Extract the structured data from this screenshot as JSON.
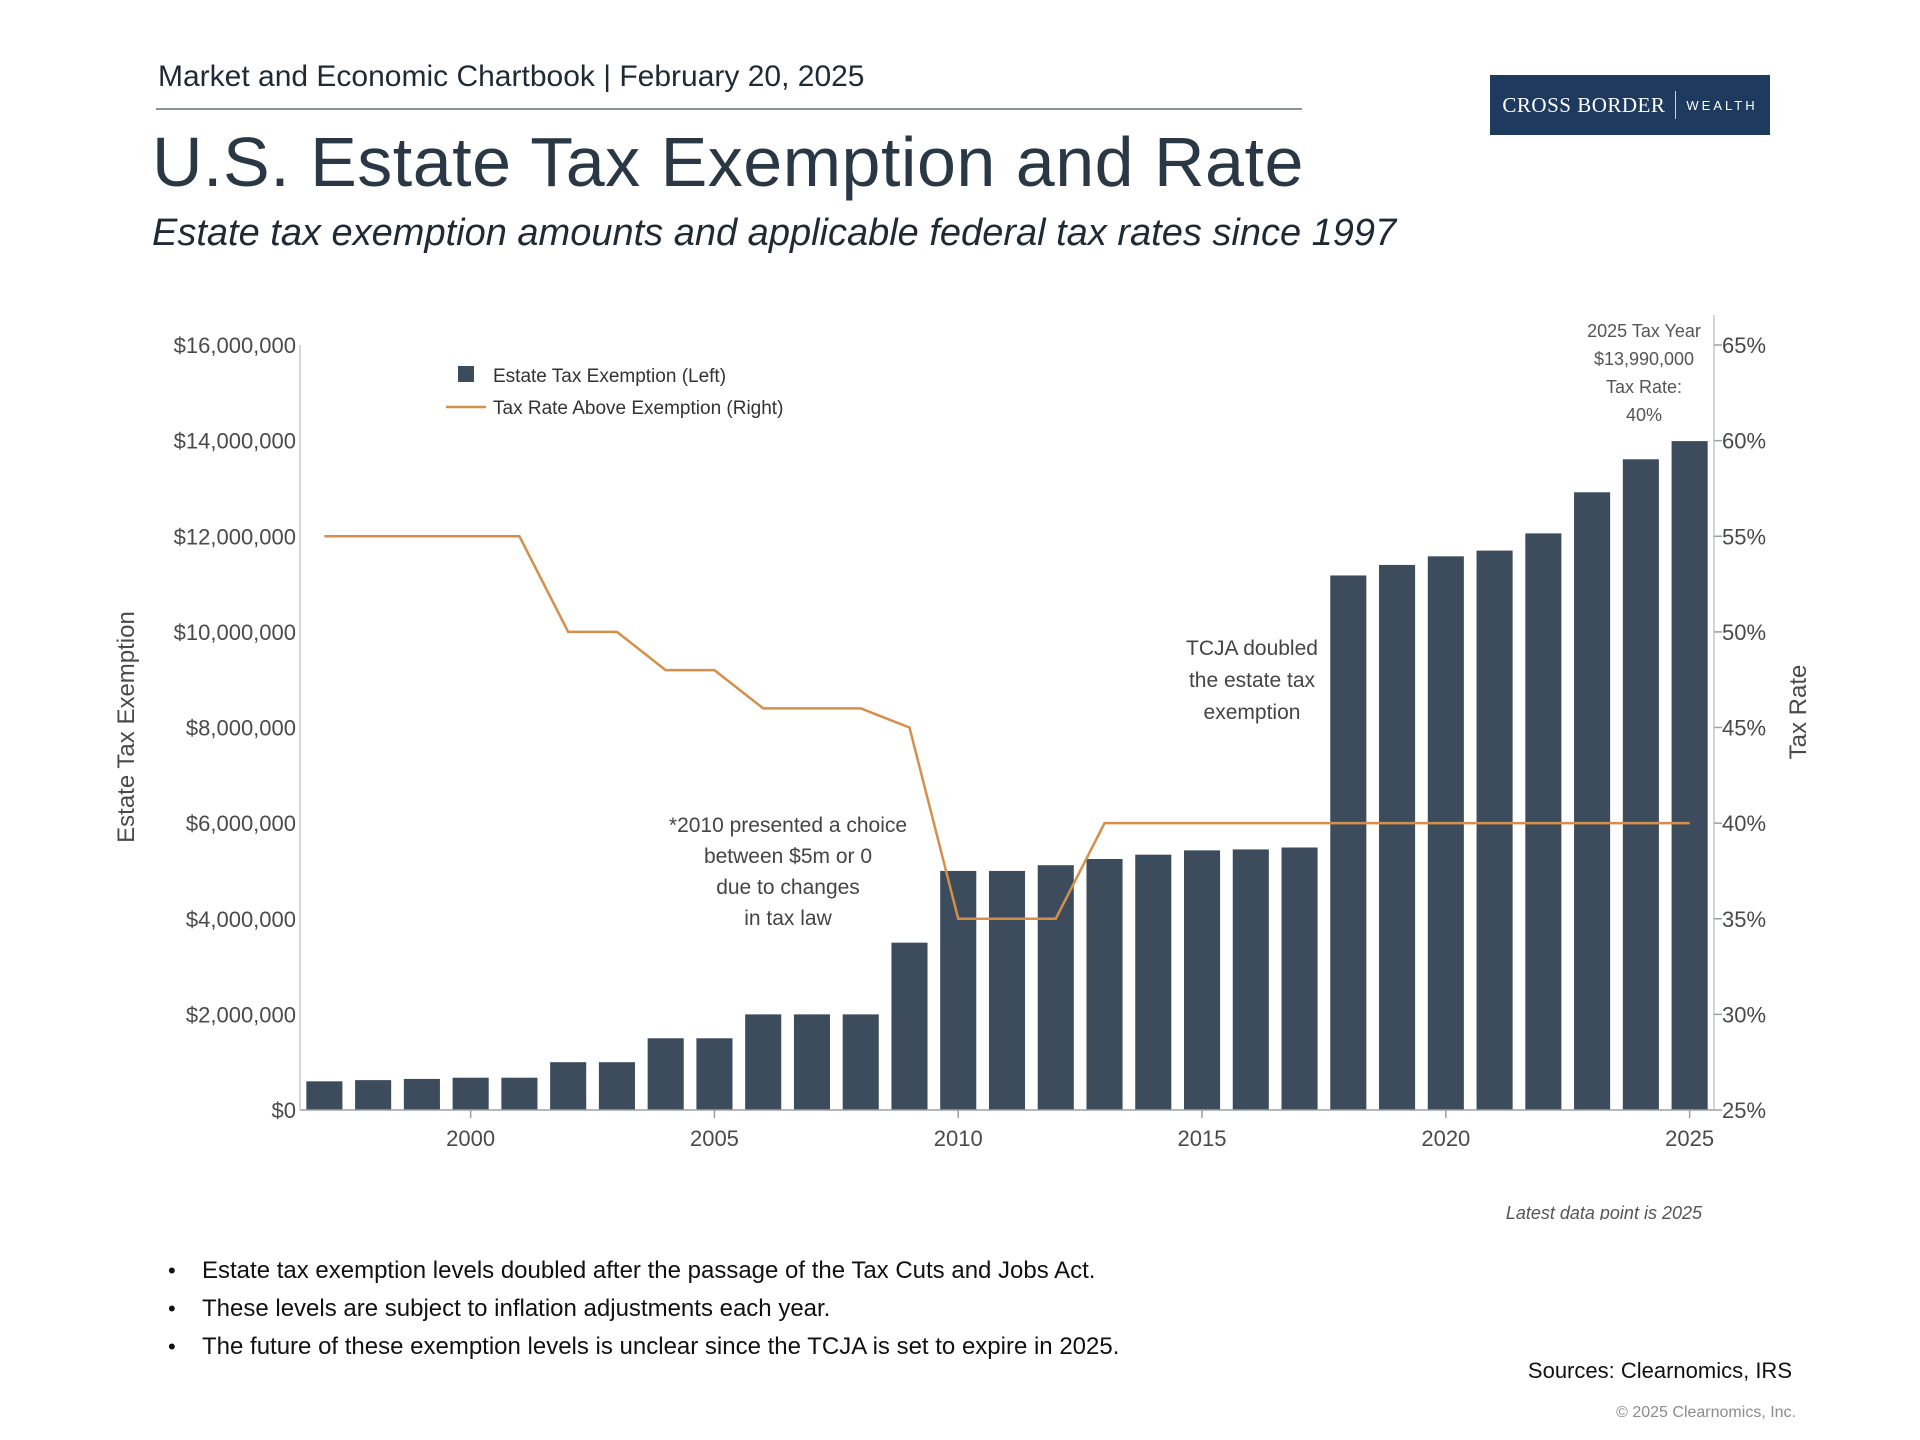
{
  "header": {
    "chartbook_line": "Market and Economic Chartbook | February 20, 2025",
    "logo_left": "CROSS BORDER",
    "logo_right": "WEALTH"
  },
  "title": "U.S. Estate Tax Exemption and Rate",
  "subtitle": "Estate tax exemption amounts and applicable federal tax rates since 1997",
  "colors": {
    "bar": "#3d4c5c",
    "line": "#d4904a",
    "text": "#4a4a4a",
    "logo_bg": "#1f3a5f"
  },
  "chart_data": {
    "type": "bar",
    "ylabel": "Estate Tax Exemption",
    "y2label": "Tax Rate",
    "ylim": [
      0,
      16000000
    ],
    "y2lim": [
      25,
      65
    ],
    "yticks": [
      "$0",
      "$2,000,000",
      "$4,000,000",
      "$6,000,000",
      "$8,000,000",
      "$10,000,000",
      "$12,000,000",
      "$14,000,000",
      "$16,000,000"
    ],
    "y2ticks": [
      "25%",
      "30%",
      "35%",
      "40%",
      "45%",
      "50%",
      "55%",
      "60%",
      "65%"
    ],
    "xticks": [
      "2000",
      "2005",
      "2010",
      "2015",
      "2020",
      "2025"
    ],
    "legend_placement": "top-left",
    "series": [
      {
        "name": "Estate Tax Exemption (Left)",
        "type": "bar",
        "years": [
          1997,
          1998,
          1999,
          2000,
          2001,
          2002,
          2003,
          2004,
          2005,
          2006,
          2007,
          2008,
          2009,
          2010,
          2011,
          2012,
          2013,
          2014,
          2015,
          2016,
          2017,
          2018,
          2019,
          2020,
          2021,
          2022,
          2023,
          2024,
          2025
        ],
        "values": [
          600000,
          625000,
          650000,
          675000,
          675000,
          1000000,
          1000000,
          1500000,
          1500000,
          2000000,
          2000000,
          2000000,
          3500000,
          5000000,
          5000000,
          5120000,
          5250000,
          5340000,
          5430000,
          5450000,
          5490000,
          11180000,
          11400000,
          11580000,
          11700000,
          12060000,
          12920000,
          13610000,
          13990000
        ]
      },
      {
        "name": "Tax Rate Above Exemption (Right)",
        "type": "line",
        "points": [
          [
            1997,
            55
          ],
          [
            2001,
            55
          ],
          [
            2002,
            50
          ],
          [
            2003,
            50
          ],
          [
            2004,
            48
          ],
          [
            2005,
            48
          ],
          [
            2006,
            46
          ],
          [
            2008,
            46
          ],
          [
            2009,
            45
          ],
          [
            2010,
            35
          ],
          [
            2012,
            35
          ],
          [
            2013,
            40
          ],
          [
            2025,
            40
          ]
        ]
      }
    ],
    "annotations": {
      "callout_2025": [
        "2025 Tax Year",
        "$13,990,000",
        "Tax Rate:",
        "40%"
      ],
      "note_2010": [
        "*2010 presented a choice",
        "between $5m or 0",
        "due to changes",
        "in tax law"
      ],
      "note_tcja": [
        "TCJA doubled",
        "the estate tax",
        "exemption"
      ]
    },
    "latest_note": "Latest data point is 2025"
  },
  "bullets": [
    "Estate tax exemption levels doubled after the passage of the Tax Cuts and Jobs Act.",
    "These levels are subject to inflation adjustments each year.",
    "The future of these exemption levels is unclear since the TCJA is set to expire in 2025."
  ],
  "sources": "Sources: Clearnomics, IRS",
  "copyright": "© 2025 Clearnomics, Inc."
}
